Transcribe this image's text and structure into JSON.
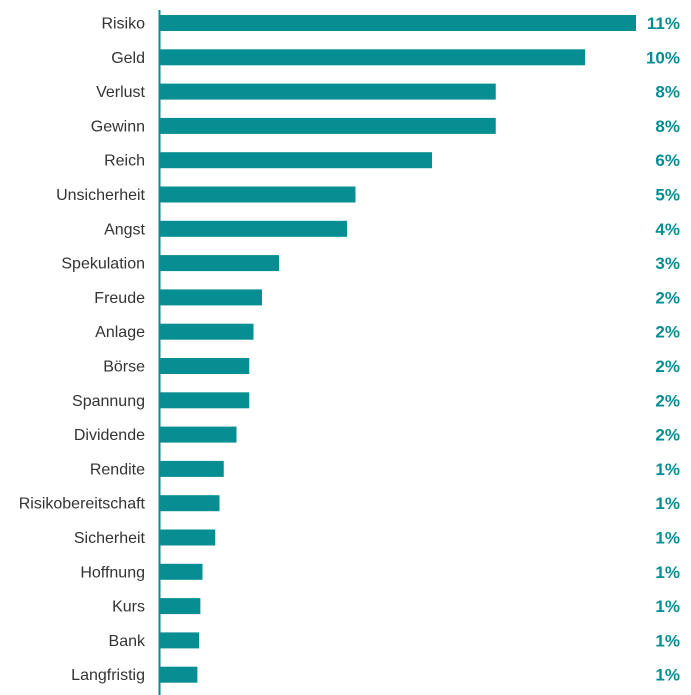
{
  "chart_data": {
    "type": "bar",
    "orientation": "horizontal",
    "title": "",
    "xlabel": "",
    "ylabel": "",
    "grid": false,
    "legend": "none",
    "categories": [
      "Risiko",
      "Geld",
      "Verlust",
      "Gewinn",
      "Reich",
      "Unsicherheit",
      "Angst",
      "Spekulation",
      "Freude",
      "Anlage",
      "Börse",
      "Spannung",
      "Dividende",
      "Rendite",
      "Risikobereitschaft",
      "Sicherheit",
      "Hoffnung",
      "Kurs",
      "Bank",
      "Langfristig"
    ],
    "values": [
      11.2,
      10.0,
      7.9,
      7.9,
      6.4,
      4.6,
      4.4,
      2.8,
      2.4,
      2.2,
      2.1,
      2.1,
      1.8,
      1.5,
      1.4,
      1.3,
      1.0,
      0.95,
      0.92,
      0.88
    ],
    "value_labels": [
      "11%",
      "10%",
      "8%",
      "8%",
      "6%",
      "5%",
      "4%",
      "3%",
      "2%",
      "2%",
      "2%",
      "2%",
      "2%",
      "1%",
      "1%",
      "1%",
      "1%",
      "1%",
      "1%",
      "1%"
    ],
    "xlim": [
      0,
      11.2
    ],
    "colors": {
      "bar": "#068e93",
      "value_label": "#068e93",
      "axis": "#068e93",
      "category_label": "#333333"
    }
  }
}
